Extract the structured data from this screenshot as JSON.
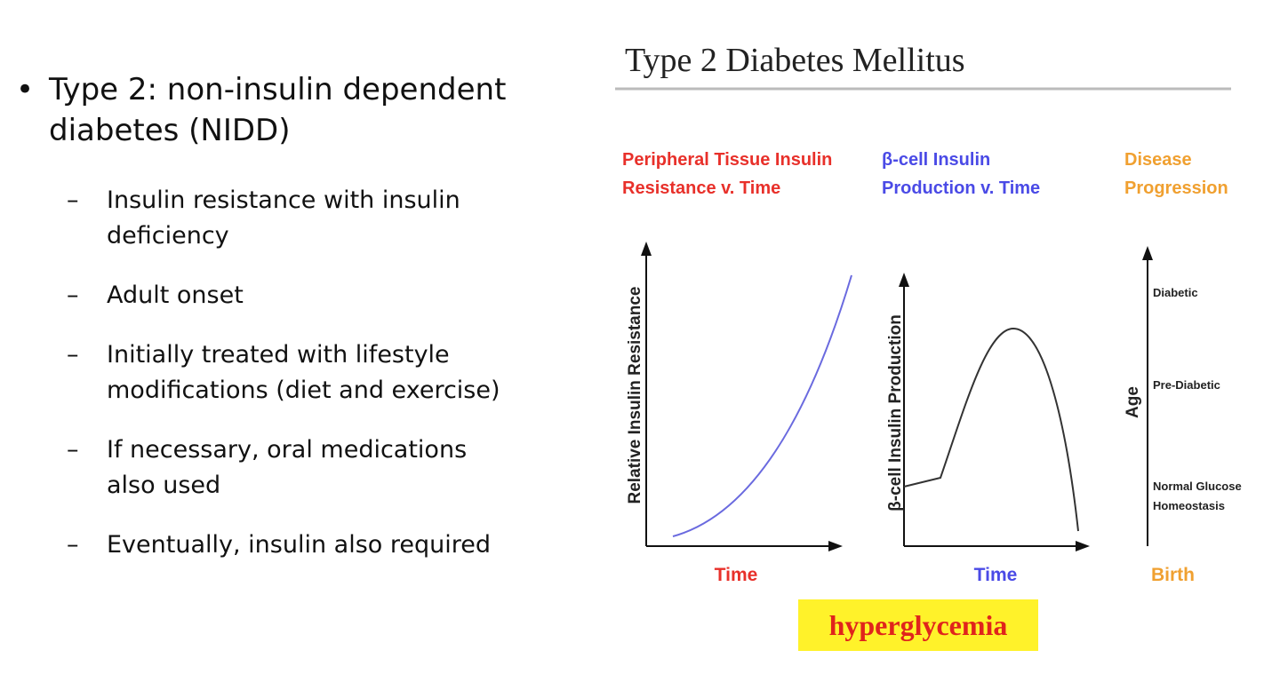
{
  "slide": {
    "bullet": {
      "text": "Type 2: non-insulin dependent diabetes (NIDD)",
      "sub_bullets": [
        "Insulin resistance with insulin deficiency",
        "Adult onset",
        "Initially treated with lifestyle modifications (diet and exercise)",
        "If necessary, oral medications also used",
        "Eventually, insulin also required"
      ]
    },
    "figure": {
      "title": "Type 2 Diabetes Mellitus",
      "panels": [
        {
          "title_lines": [
            "Peripheral Tissue Insulin",
            "Resistance  v. Time"
          ],
          "y_label": "Relative Insulin Resistance",
          "x_label": "Time"
        },
        {
          "title_lines": [
            "β-cell Insulin",
            "Production v. Time"
          ],
          "y_label": "β-cell Insulin Production",
          "x_label": "Time"
        },
        {
          "title_lines": [
            "Disease",
            "Progression"
          ],
          "y_label": "Age",
          "x_label": "Birth",
          "stages": [
            [
              "Diabetic"
            ],
            [
              "Pre-Diabetic"
            ],
            [
              "Normal Glucose",
              "Homeostasis"
            ]
          ]
        }
      ],
      "banner": "hyperglycemia"
    }
  }
}
